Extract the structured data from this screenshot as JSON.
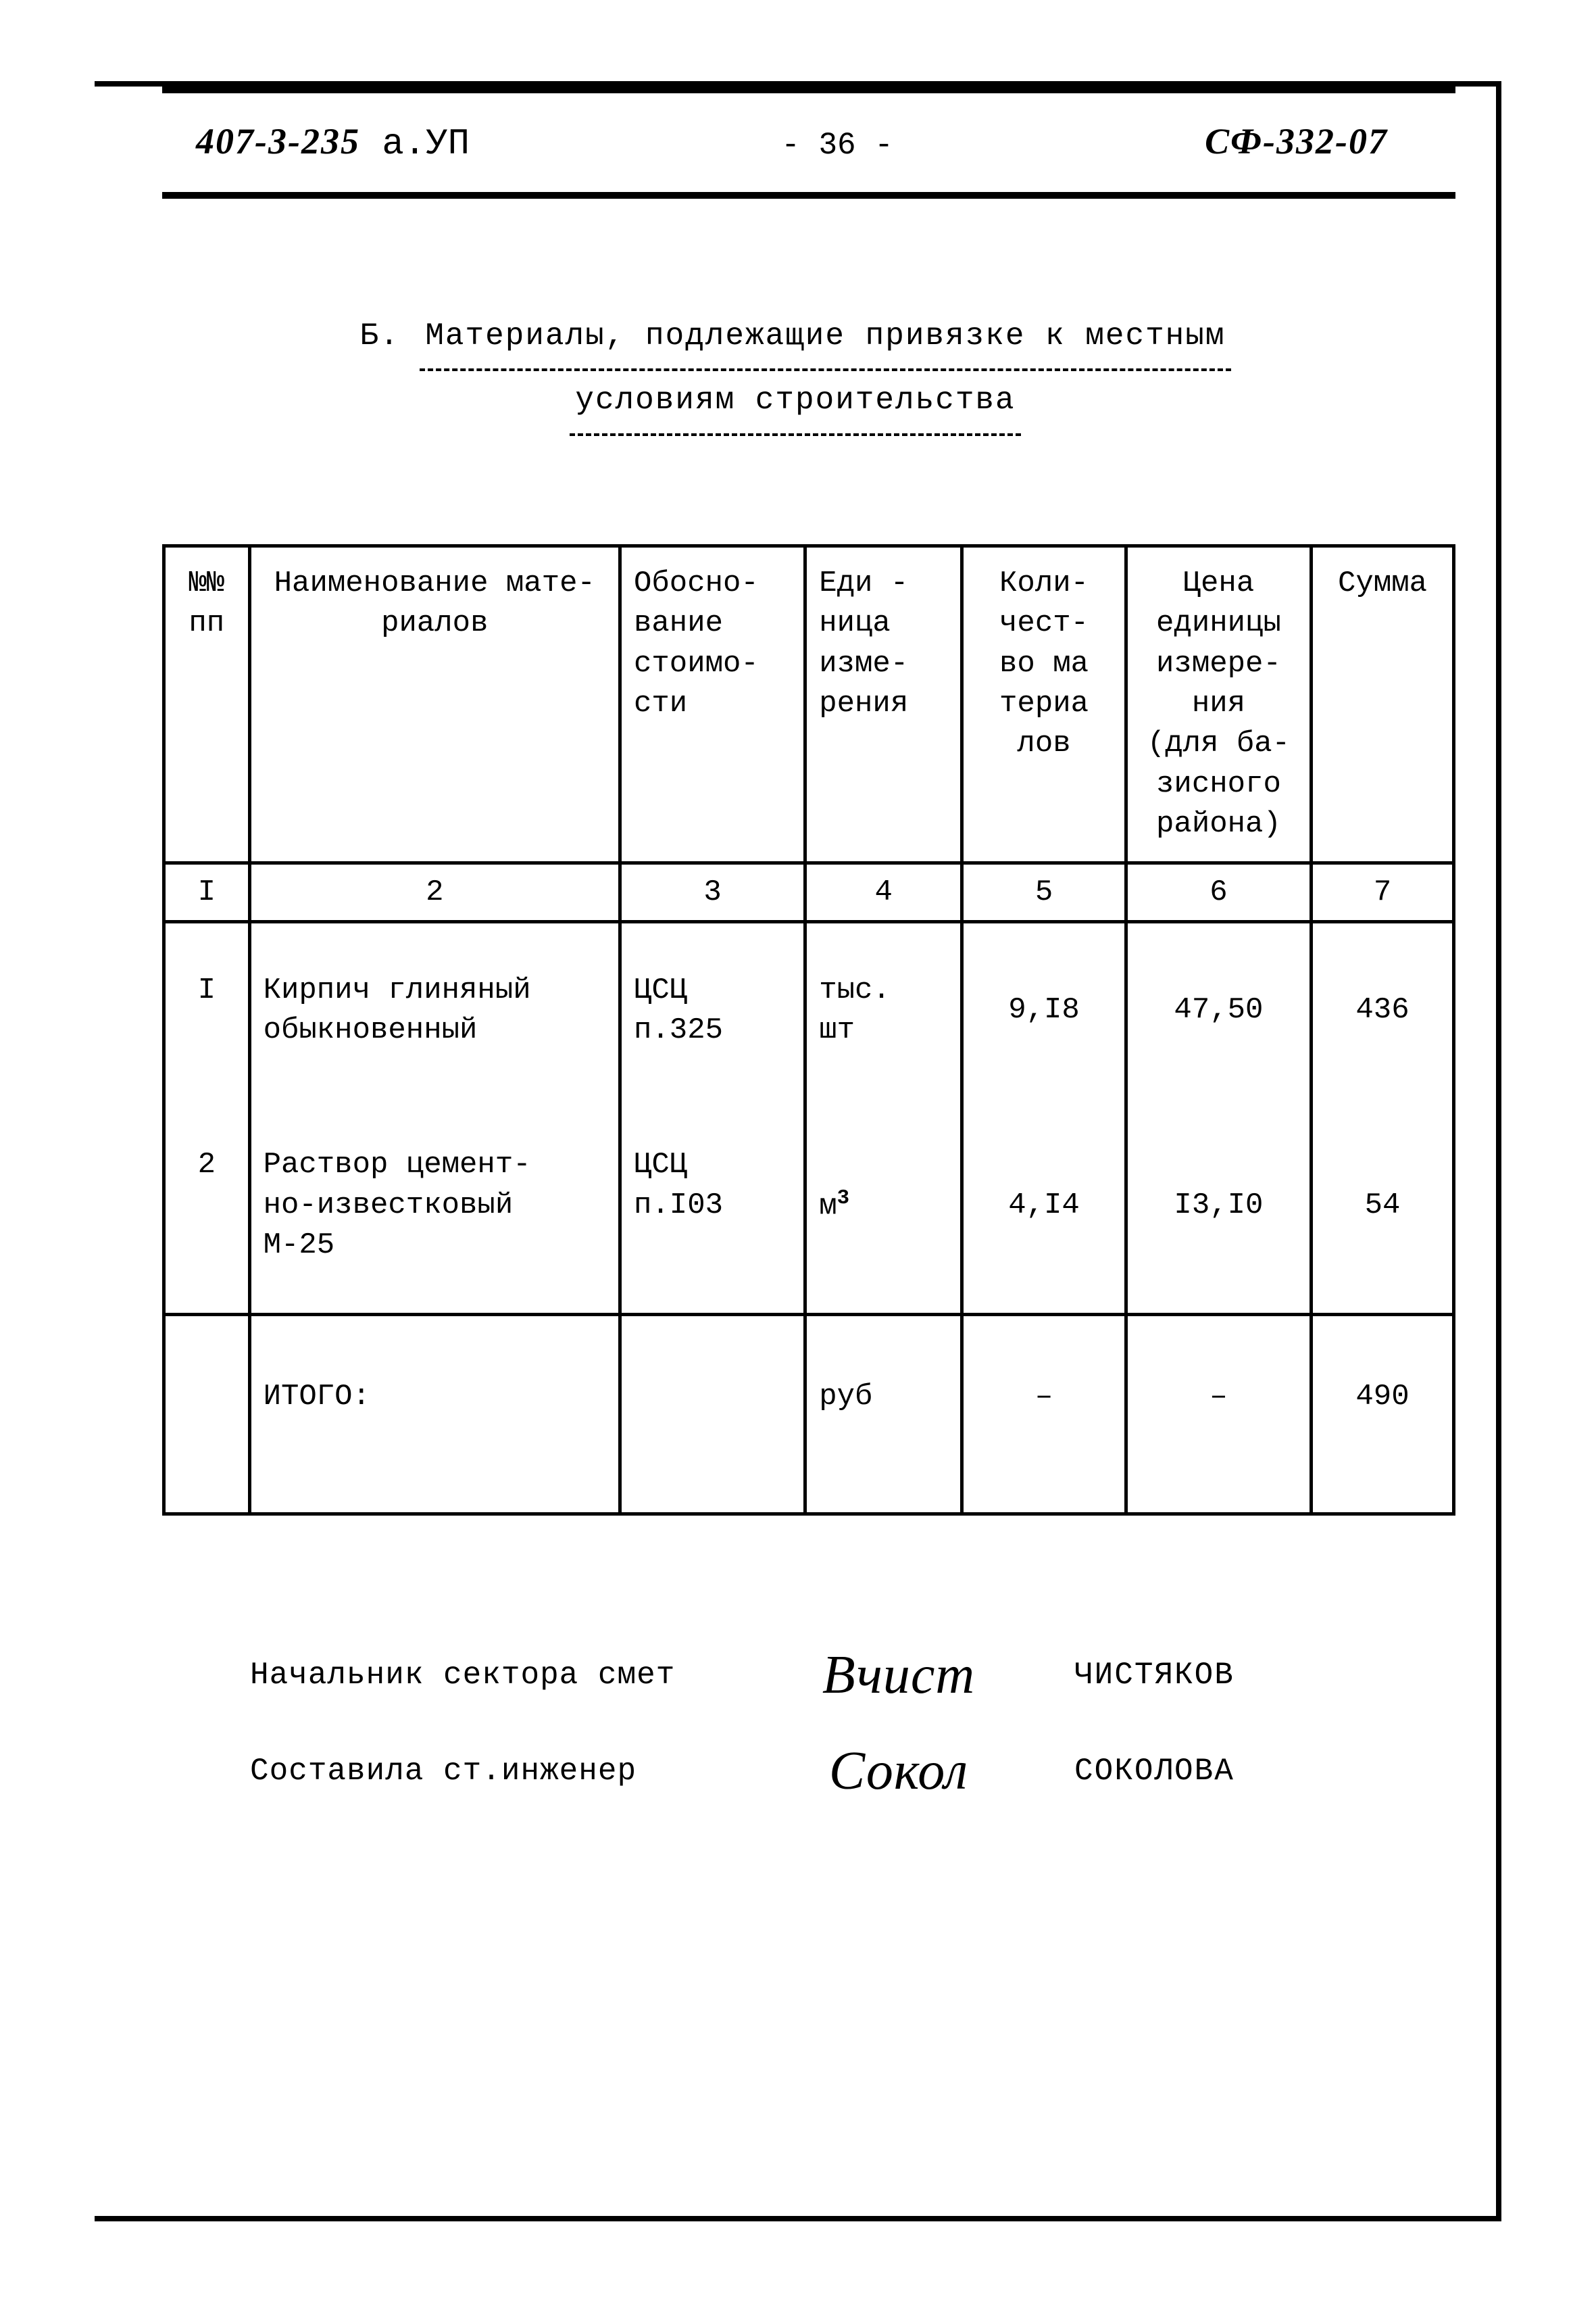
{
  "header": {
    "left_code": "407-3-235",
    "left_suffix": "а.УП",
    "page_number": "- 36 -",
    "right_code": "СФ-332-07"
  },
  "section": {
    "prefix": "Б.",
    "title_line1": "Материалы, подлежащие привязке к местным",
    "title_line2": "условиям строительства"
  },
  "table": {
    "headers": {
      "num": "№№\nпп",
      "name": "Наименование мате-\nриалов",
      "basis": "Обосно-\nвание\nстоимо-\nсти",
      "unit": "Еди -\nница\nизме-\nрения",
      "qty": "Коли-\nчест-\nво ма\nтериа\nлов",
      "price": "Цена\nединицы\nизмере-\nния\n(для ба-\nзисного\nрайона)",
      "sum": "Сумма"
    },
    "col_numbers": [
      "I",
      "2",
      "3",
      "4",
      "5",
      "6",
      "7"
    ],
    "rows": [
      {
        "num": "I",
        "name": "Кирпич глиняный\nобыкновенный",
        "basis": "ЦСЦ\nп.325",
        "unit": "тыс.\nшт",
        "qty": "9,I8",
        "price": "47,50",
        "sum": "436"
      },
      {
        "num": "2",
        "name": "Раствор цемент-\nно-известковый\nМ-25",
        "basis": "ЦСЦ\nп.I03",
        "unit_html": "м<span class=\"sup\">3</span>",
        "qty": "4,I4",
        "price": "I3,I0",
        "sum": "54"
      }
    ],
    "total": {
      "label": "ИТОГО:",
      "unit": "руб",
      "qty": "–",
      "price": "–",
      "sum": "490"
    }
  },
  "signatures": {
    "row1_label": "Начальник сектора смет",
    "row1_name": "ЧИСТЯКОВ",
    "row2_label": "Составила ст.инженер",
    "row2_name": "СОКОЛОВА",
    "script1": "Вчист",
    "script2": "Сокол"
  }
}
